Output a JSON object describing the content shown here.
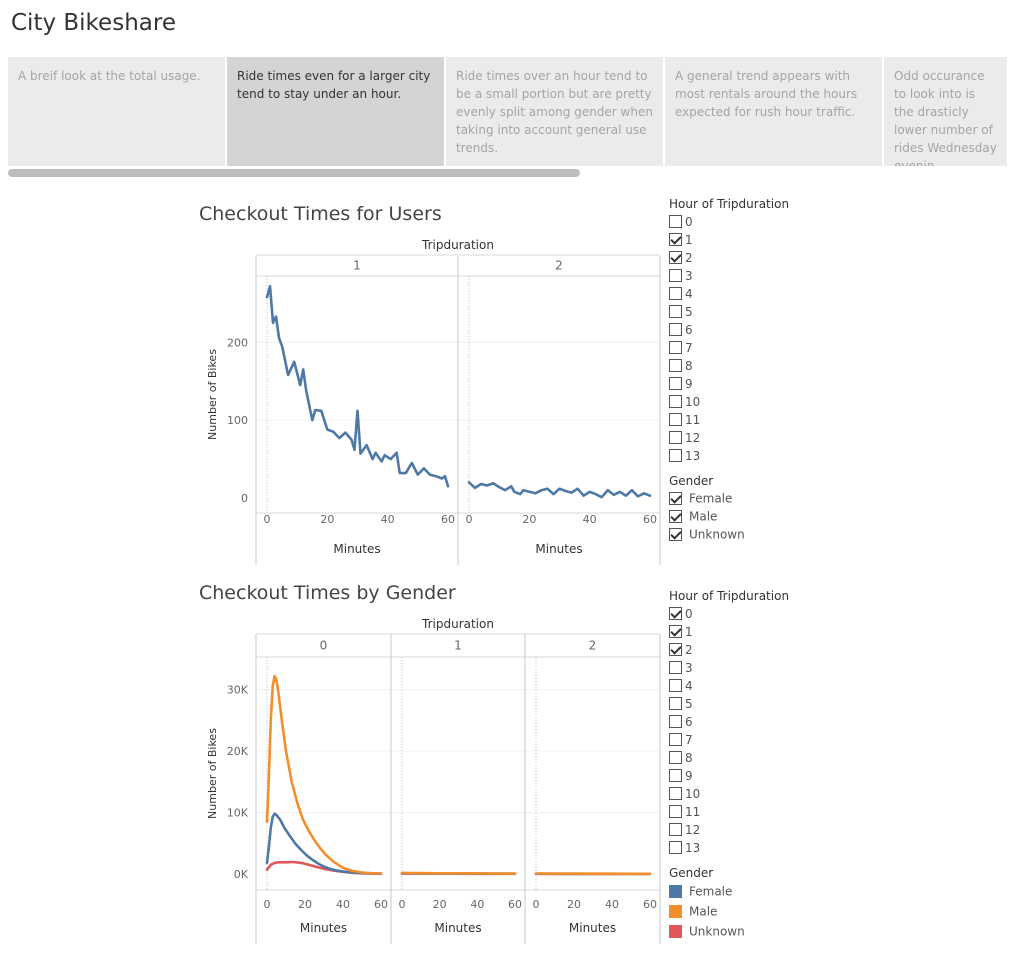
{
  "title": "City Bikeshare",
  "story_points": [
    {
      "text": "A breif look at the total usage.",
      "active": false
    },
    {
      "text": "Ride times even for a larger city tend to stay under an hour.",
      "active": true
    },
    {
      "text": "Ride times over an hour tend to be a small portion but are pretty evenly split among gender when taking into account general use trends.",
      "active": false
    },
    {
      "text": "A general trend appears with most rentals around the hours expected for rush hour traffic.",
      "active": false
    },
    {
      "text": "Odd occurance to look into is the drasticly lower number of rides Wednesday evenin..",
      "active": false
    }
  ],
  "colors": {
    "female": "#4e79a7",
    "male": "#f28e2b",
    "unknown": "#e15759",
    "users": "#4e79a7"
  },
  "chart_data": [
    {
      "type": "line",
      "title": "Checkout Times for Users",
      "facet_label": "Tripduration",
      "facets": [
        "1",
        "2"
      ],
      "xlabel": "Minutes",
      "ylabel": "Number of Bikes",
      "xlim": [
        0,
        60
      ],
      "ylim": [
        0,
        280
      ],
      "x_ticks": [
        0,
        20,
        40,
        60
      ],
      "y_ticks": [
        0,
        100,
        200
      ],
      "y_tick_labels": [
        "0",
        "100",
        "200"
      ],
      "series": [
        {
          "values_by_facet": [
            [
              [
                0,
                258
              ],
              [
                1,
                272
              ],
              [
                2,
                225
              ],
              [
                3,
                233
              ],
              [
                4,
                205
              ],
              [
                5,
                195
              ],
              [
                7,
                158
              ],
              [
                9,
                175
              ],
              [
                11,
                145
              ],
              [
                12,
                165
              ],
              [
                13,
                138
              ],
              [
                15,
                100
              ],
              [
                16,
                113
              ],
              [
                18,
                112
              ],
              [
                20,
                88
              ],
              [
                22,
                85
              ],
              [
                24,
                77
              ],
              [
                26,
                84
              ],
              [
                28,
                75
              ],
              [
                29,
                62
              ],
              [
                30,
                112
              ],
              [
                31,
                57
              ],
              [
                33,
                68
              ],
              [
                35,
                50
              ],
              [
                36,
                58
              ],
              [
                38,
                47
              ],
              [
                39,
                55
              ],
              [
                41,
                50
              ],
              [
                43,
                58
              ],
              [
                44,
                32
              ],
              [
                46,
                32
              ],
              [
                48,
                45
              ],
              [
                50,
                30
              ],
              [
                52,
                38
              ],
              [
                54,
                30
              ],
              [
                56,
                28
              ],
              [
                58,
                25
              ],
              [
                59,
                28
              ],
              [
                60,
                15
              ]
            ],
            [
              [
                0,
                20
              ],
              [
                2,
                13
              ],
              [
                4,
                18
              ],
              [
                6,
                16
              ],
              [
                8,
                19
              ],
              [
                10,
                14
              ],
              [
                12,
                10
              ],
              [
                14,
                15
              ],
              [
                15,
                8
              ],
              [
                17,
                5
              ],
              [
                18,
                10
              ],
              [
                20,
                8
              ],
              [
                22,
                6
              ],
              [
                24,
                10
              ],
              [
                26,
                12
              ],
              [
                28,
                5
              ],
              [
                30,
                12
              ],
              [
                32,
                9
              ],
              [
                34,
                7
              ],
              [
                36,
                12
              ],
              [
                38,
                3
              ],
              [
                40,
                8
              ],
              [
                42,
                5
              ],
              [
                44,
                1
              ],
              [
                46,
                10
              ],
              [
                48,
                4
              ],
              [
                50,
                8
              ],
              [
                52,
                3
              ],
              [
                54,
                10
              ],
              [
                56,
                2
              ],
              [
                58,
                6
              ],
              [
                60,
                3
              ]
            ]
          ]
        }
      ],
      "legend": {
        "hour_title": "Hour of Tripduration",
        "hours": [
          "0",
          "1",
          "2",
          "3",
          "4",
          "5",
          "6",
          "7",
          "8",
          "9",
          "10",
          "11",
          "12",
          "13"
        ],
        "hours_checked": [
          "1",
          "2"
        ],
        "gender_title": "Gender",
        "genders": [
          "Female",
          "Male",
          "Unknown"
        ]
      }
    },
    {
      "type": "line",
      "title": "Checkout Times by Gender",
      "facet_label": "Tripduration",
      "facets": [
        "0",
        "1",
        "2"
      ],
      "xlabel": "Minutes",
      "ylabel": "Number of Bikes",
      "xlim": [
        0,
        60
      ],
      "ylim": [
        0,
        34000
      ],
      "x_ticks": [
        0,
        20,
        40,
        60
      ],
      "y_ticks": [
        0,
        10000,
        20000,
        30000
      ],
      "y_tick_labels": [
        "0K",
        "10K",
        "20K",
        "30K"
      ],
      "series": [
        {
          "name": "Female",
          "values_by_facet": [
            [
              [
                0,
                1800
              ],
              [
                1,
                4500
              ],
              [
                2,
                7500
              ],
              [
                3,
                9300
              ],
              [
                4,
                9800
              ],
              [
                5,
                9600
              ],
              [
                7,
                8800
              ],
              [
                9,
                7600
              ],
              [
                12,
                6200
              ],
              [
                15,
                4900
              ],
              [
                18,
                3900
              ],
              [
                21,
                3000
              ],
              [
                24,
                2300
              ],
              [
                27,
                1700
              ],
              [
                30,
                1200
              ],
              [
                33,
                850
              ],
              [
                36,
                600
              ],
              [
                40,
                400
              ],
              [
                45,
                250
              ],
              [
                50,
                160
              ],
              [
                55,
                100
              ],
              [
                60,
                70
              ]
            ],
            [
              [
                0,
                120
              ],
              [
                20,
                80
              ],
              [
                40,
                60
              ],
              [
                60,
                50
              ]
            ],
            [
              [
                0,
                50
              ],
              [
                20,
                40
              ],
              [
                40,
                30
              ],
              [
                60,
                25
              ]
            ]
          ]
        },
        {
          "name": "Male",
          "values_by_facet": [
            [
              [
                0,
                8500
              ],
              [
                1,
                16000
              ],
              [
                2,
                25000
              ],
              [
                3,
                30500
              ],
              [
                4,
                32200
              ],
              [
                5,
                31500
              ],
              [
                6,
                29500
              ],
              [
                8,
                24500
              ],
              [
                10,
                20000
              ],
              [
                13,
                15000
              ],
              [
                16,
                11500
              ],
              [
                19,
                8800
              ],
              [
                22,
                7000
              ],
              [
                25,
                5500
              ],
              [
                28,
                4200
              ],
              [
                31,
                3100
              ],
              [
                35,
                2000
              ],
              [
                40,
                1000
              ],
              [
                45,
                500
              ],
              [
                50,
                250
              ],
              [
                55,
                130
              ],
              [
                60,
                80
              ]
            ],
            [
              [
                0,
                180
              ],
              [
                20,
                120
              ],
              [
                40,
                90
              ],
              [
                60,
                70
              ]
            ],
            [
              [
                0,
                80
              ],
              [
                20,
                60
              ],
              [
                40,
                50
              ],
              [
                60,
                40
              ]
            ]
          ]
        },
        {
          "name": "Unknown",
          "values_by_facet": [
            [
              [
                0,
                700
              ],
              [
                1,
                1100
              ],
              [
                2,
                1500
              ],
              [
                4,
                1800
              ],
              [
                6,
                1900
              ],
              [
                10,
                1900
              ],
              [
                14,
                1950
              ],
              [
                18,
                1800
              ],
              [
                22,
                1500
              ],
              [
                26,
                1150
              ],
              [
                30,
                850
              ],
              [
                35,
                550
              ],
              [
                40,
                350
              ],
              [
                45,
                200
              ],
              [
                50,
                110
              ],
              [
                55,
                70
              ],
              [
                60,
                40
              ]
            ],
            [
              [
                0,
                60
              ],
              [
                20,
                45
              ],
              [
                40,
                35
              ],
              [
                60,
                30
              ]
            ],
            [
              [
                0,
                25
              ],
              [
                20,
                20
              ],
              [
                40,
                15
              ],
              [
                60,
                12
              ]
            ]
          ]
        }
      ],
      "legend": {
        "hour_title": "Hour of Tripduration",
        "hours": [
          "0",
          "1",
          "2",
          "3",
          "4",
          "5",
          "6",
          "7",
          "8",
          "9",
          "10",
          "11",
          "12",
          "13"
        ],
        "hours_checked": [
          "0",
          "1",
          "2"
        ],
        "gender_title": "Gender",
        "genders": [
          "Female",
          "Male",
          "Unknown"
        ]
      }
    }
  ]
}
